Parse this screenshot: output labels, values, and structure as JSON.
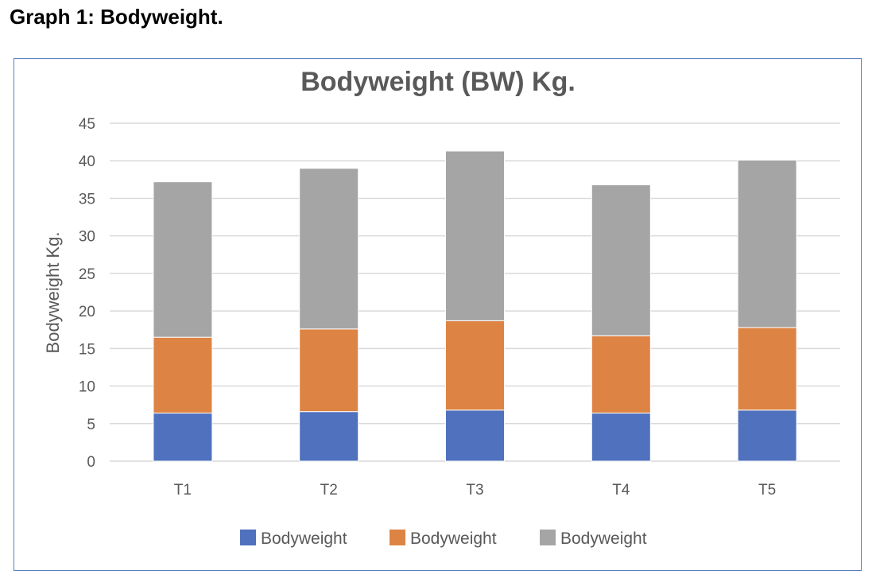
{
  "caption": "Graph 1: Bodyweight.",
  "chart_data": {
    "type": "bar",
    "stacked": true,
    "title": "Bodyweight (BW) Kg.",
    "xlabel": "",
    "ylabel": "Bodyweight Kg.",
    "ylim": [
      0,
      45
    ],
    "yticks": [
      0,
      5,
      10,
      15,
      20,
      25,
      30,
      35,
      40,
      45
    ],
    "categories": [
      "T1",
      "T2",
      "T3",
      "T4",
      "T5"
    ],
    "series": [
      {
        "name": "Bodyweight",
        "color": "#4f71be",
        "values": [
          6.4,
          6.6,
          6.8,
          6.4,
          6.8
        ]
      },
      {
        "name": "Bodyweight",
        "color": "#dd8344",
        "values": [
          10.1,
          11.0,
          11.9,
          10.3,
          11.0
        ]
      },
      {
        "name": "Bodyweight",
        "color": "#a5a5a5",
        "values": [
          20.7,
          21.4,
          22.6,
          20.1,
          22.3
        ]
      }
    ],
    "grid": true,
    "legend": "bottom"
  }
}
